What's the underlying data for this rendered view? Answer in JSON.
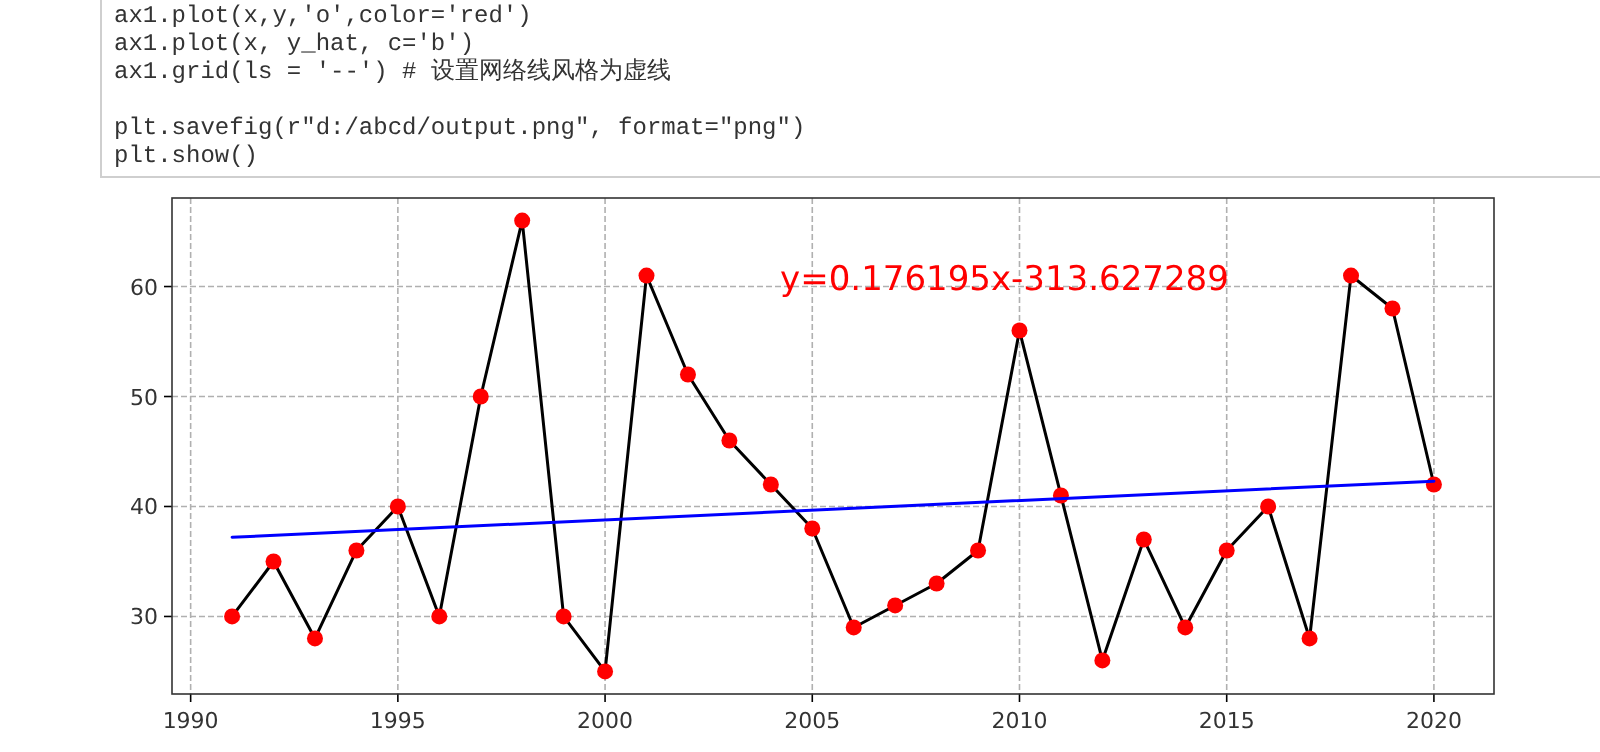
{
  "chart_data": {
    "type": "line",
    "x": [
      1991,
      1992,
      1993,
      1994,
      1995,
      1996,
      1997,
      1998,
      1999,
      2000,
      2001,
      2002,
      2003,
      2004,
      2005,
      2006,
      2007,
      2008,
      2009,
      2010,
      2011,
      2012,
      2013,
      2014,
      2015,
      2016,
      2017,
      2018,
      2019,
      2020
    ],
    "series": [
      {
        "color": "#000000",
        "values": [
          30,
          35,
          28,
          36,
          40,
          30,
          50,
          66,
          30,
          25,
          61,
          52,
          46,
          42,
          38,
          29,
          31,
          33,
          36,
          56,
          41,
          26,
          37,
          29,
          36,
          40,
          28,
          61,
          58,
          42
        ]
      },
      {
        "type": "scatter",
        "color": "#ff0000",
        "values": [
          30,
          35,
          28,
          36,
          40,
          30,
          50,
          66,
          30,
          25,
          61,
          52,
          46,
          42,
          38,
          29,
          31,
          33,
          36,
          56,
          41,
          26,
          37,
          29,
          36,
          40,
          28,
          61,
          58,
          42
        ]
      },
      {
        "type": "line",
        "color": "#0000ff",
        "x": [
          1991,
          2020
        ],
        "values": [
          37.2,
          42.3
        ]
      }
    ],
    "xlim": [
      1989.55,
      2021.45
    ],
    "ylim": [
      22.95,
      68.05
    ],
    "xticks": [
      1990,
      1995,
      2000,
      2005,
      2010,
      2015,
      2020
    ],
    "yticks": [
      30,
      40,
      50,
      60
    ],
    "grid": true,
    "annotations": [
      "ax1.plot(x,y,'o',color='red')\nax1.plot(x, y_hat, c='b')\nax1.grid(ls = '--') # 设置网络线风格为虚线\n\nplt.savefig(r\"d:/abcd/output.png\", format=\"png\")\nplt.show()",
      "y=0.176195x-313.627289"
    ]
  }
}
